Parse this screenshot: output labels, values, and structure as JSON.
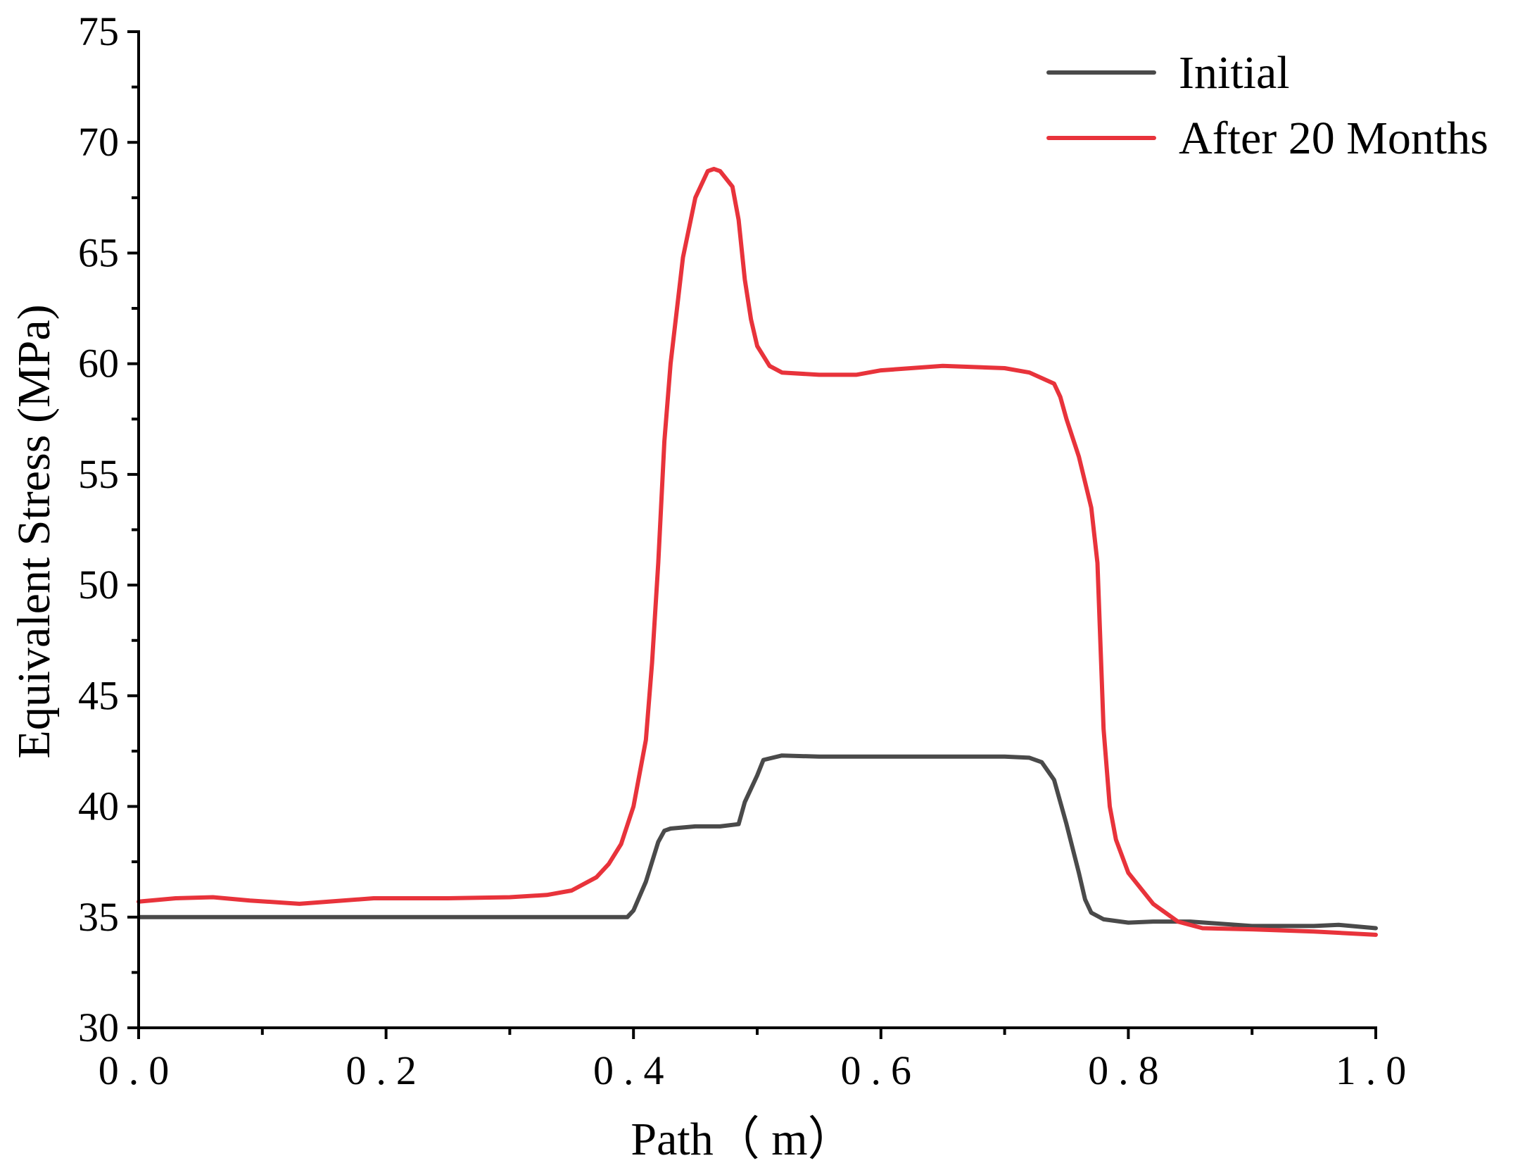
{
  "chart_data": {
    "type": "line",
    "xlabel": "Path（ m）",
    "ylabel": "Equivalent Stress (MPa)",
    "xlim": [
      0.0,
      1.0
    ],
    "ylim": [
      30,
      75
    ],
    "xticks": [
      0.0,
      0.2,
      0.4,
      0.6,
      0.8,
      1.0
    ],
    "xtick_labels": [
      "0.0",
      "0.2",
      "0.4",
      "0.6",
      "0.8",
      "1.0"
    ],
    "yticks": [
      30,
      35,
      40,
      45,
      50,
      55,
      60,
      65,
      70,
      75
    ],
    "ytick_labels": [
      "30",
      "35",
      "40",
      "45",
      "50",
      "55",
      "60",
      "65",
      "70",
      "75"
    ],
    "legend_position": "top-right",
    "grid": false,
    "series": [
      {
        "name": "Initial",
        "color": "#4a4a4a",
        "x": [
          0.0,
          0.1,
          0.2,
          0.3,
          0.38,
          0.39,
          0.395,
          0.4,
          0.41,
          0.42,
          0.425,
          0.43,
          0.45,
          0.47,
          0.485,
          0.49,
          0.5,
          0.505,
          0.52,
          0.55,
          0.6,
          0.65,
          0.7,
          0.72,
          0.73,
          0.74,
          0.75,
          0.76,
          0.765,
          0.77,
          0.78,
          0.8,
          0.82,
          0.85,
          0.9,
          0.95,
          0.97,
          1.0
        ],
        "y": [
          35.0,
          35.0,
          35.0,
          35.0,
          35.0,
          35.0,
          35.0,
          35.3,
          36.6,
          38.4,
          38.9,
          39.0,
          39.1,
          39.1,
          39.2,
          40.2,
          41.4,
          42.1,
          42.3,
          42.25,
          42.25,
          42.25,
          42.25,
          42.2,
          42.0,
          41.2,
          39.2,
          37.0,
          35.8,
          35.2,
          34.9,
          34.75,
          34.8,
          34.8,
          34.6,
          34.6,
          34.65,
          34.5
        ]
      },
      {
        "name": "After 20 Months",
        "color": "#e8333b",
        "x": [
          0.0,
          0.03,
          0.06,
          0.09,
          0.13,
          0.19,
          0.25,
          0.3,
          0.33,
          0.35,
          0.37,
          0.38,
          0.39,
          0.4,
          0.41,
          0.415,
          0.42,
          0.425,
          0.43,
          0.44,
          0.45,
          0.46,
          0.465,
          0.47,
          0.48,
          0.485,
          0.49,
          0.495,
          0.5,
          0.51,
          0.52,
          0.55,
          0.58,
          0.6,
          0.65,
          0.7,
          0.72,
          0.74,
          0.745,
          0.75,
          0.76,
          0.77,
          0.775,
          0.78,
          0.785,
          0.79,
          0.8,
          0.82,
          0.84,
          0.86,
          0.9,
          0.95,
          1.0
        ],
        "y": [
          35.7,
          35.85,
          35.9,
          35.75,
          35.6,
          35.85,
          35.85,
          35.9,
          36.0,
          36.2,
          36.8,
          37.4,
          38.3,
          40.0,
          43.0,
          46.5,
          51.0,
          56.5,
          60.0,
          64.8,
          67.5,
          68.7,
          68.8,
          68.7,
          68.0,
          66.5,
          63.8,
          62.0,
          60.8,
          59.9,
          59.6,
          59.5,
          59.5,
          59.7,
          59.9,
          59.8,
          59.6,
          59.1,
          58.5,
          57.5,
          55.8,
          53.5,
          51.0,
          43.5,
          40.0,
          38.5,
          37.0,
          35.6,
          34.8,
          34.5,
          34.45,
          34.35,
          34.2
        ]
      }
    ]
  }
}
